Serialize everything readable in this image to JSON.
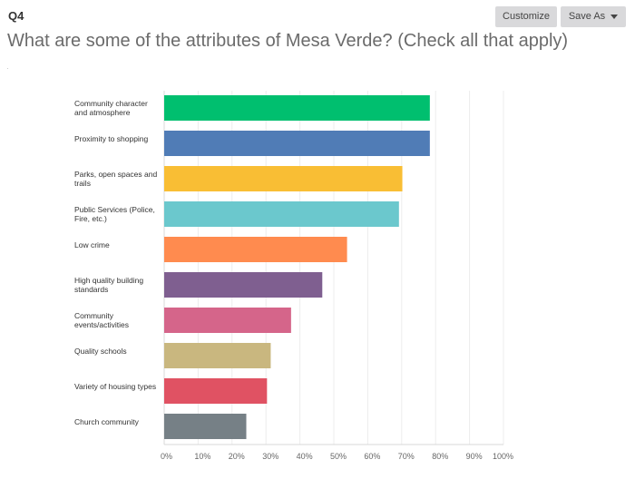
{
  "header": {
    "question_number": "Q4",
    "question_title": "What are some of the attributes of Mesa Verde? (Check all that apply)",
    "customize_label": "Customize",
    "save_as_label": "Save As"
  },
  "chart_data": {
    "type": "bar",
    "orientation": "horizontal",
    "title": "What are some of the attributes of Mesa Verde? (Check all that apply)",
    "xlabel": "",
    "ylabel": "",
    "xlim": [
      0,
      100
    ],
    "grid": true,
    "categories": [
      "Community character and atmosphere",
      "Proximity to shopping",
      "Parks, open spaces and trails",
      "Public Services (Police, Fire, etc.)",
      "Low crime",
      "High quality building standards",
      "Community events/activities",
      "Quality schools",
      "Variety of housing types",
      "Church community"
    ],
    "values": [
      78.3,
      78.3,
      70.2,
      69.2,
      53.9,
      46.6,
      37.4,
      31.4,
      30.3,
      24.2
    ],
    "colors": [
      "#00bf6f",
      "#507cb6",
      "#f9be34",
      "#6bc8cd",
      "#ff8b4f",
      "#7f5f90",
      "#d5658a",
      "#c9b77f",
      "#e05263",
      "#768086"
    ],
    "tick_labels": [
      "0%",
      "10%",
      "20%",
      "30%",
      "40%",
      "50%",
      "60%",
      "70%",
      "80%",
      "90%",
      "100%"
    ]
  }
}
